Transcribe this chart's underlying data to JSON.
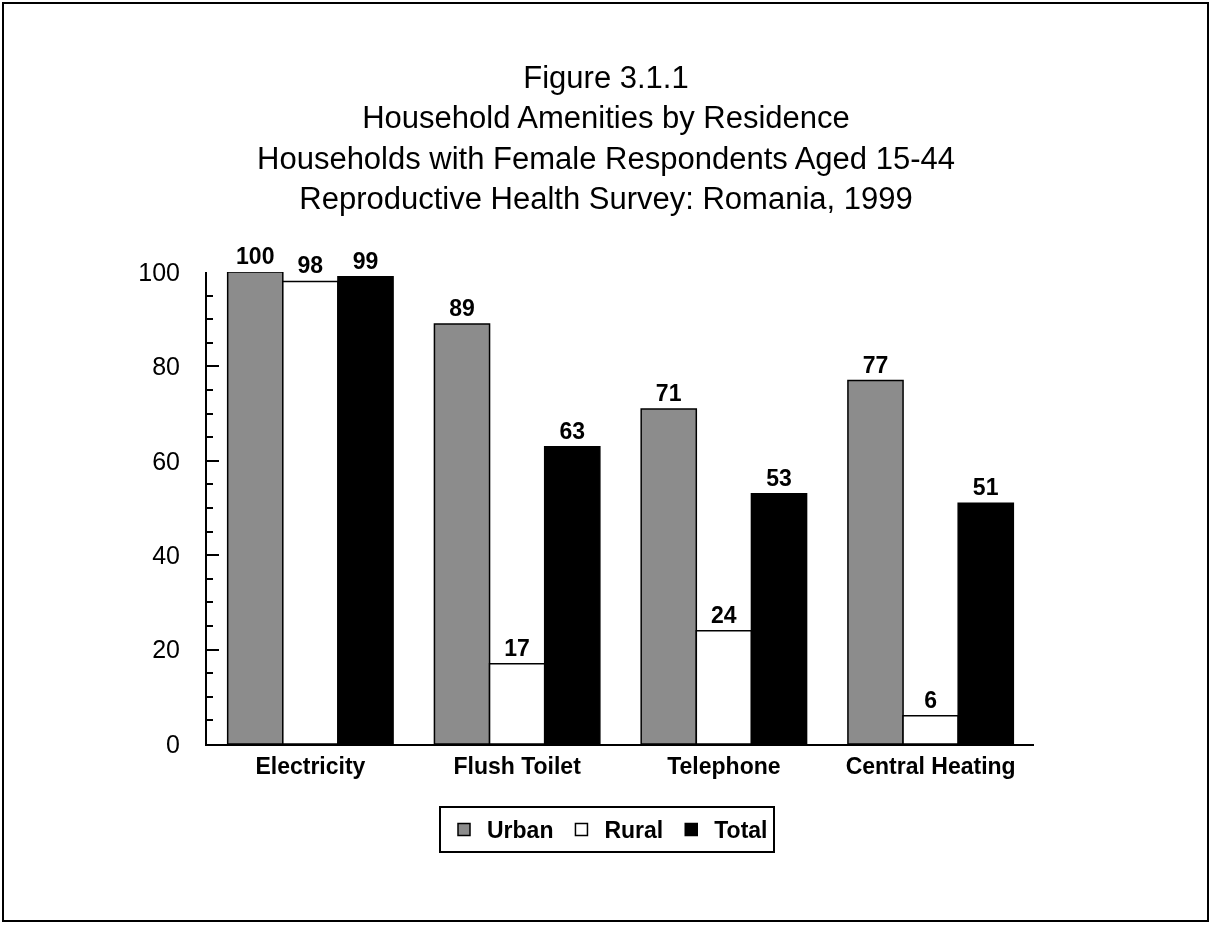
{
  "chart_data": {
    "type": "bar",
    "title": "Figure 3.1.1\nHousehold Amenities by Residence\nHouseholds with Female Respondents Aged 15-44\nReproductive Health Survey: Romania, 1999",
    "categories": [
      "Electricity",
      "Flush Toilet",
      "Telephone",
      "Central Heating"
    ],
    "series": [
      {
        "name": "Urban",
        "color": "#8c8c8c",
        "values": [
          100,
          89,
          71,
          77
        ]
      },
      {
        "name": "Rural",
        "color": "#ffffff",
        "values": [
          98,
          17,
          24,
          6
        ]
      },
      {
        "name": "Total",
        "color": "#000000",
        "values": [
          99,
          63,
          53,
          51
        ]
      }
    ],
    "ylim": [
      0,
      100
    ],
    "yticks": [
      0,
      {
        "value": 5,
        "label": null
      },
      {
        "value": 10,
        "label": null
      },
      {
        "value": 15,
        "label": null
      },
      20,
      {
        "value": 25,
        "label": null
      },
      {
        "value": 30,
        "label": null
      },
      {
        "value": 35,
        "label": null
      },
      40,
      {
        "value": 45,
        "label": null
      },
      {
        "value": 50,
        "label": null
      },
      {
        "value": 55,
        "label": null
      },
      60,
      {
        "value": 65,
        "label": null
      },
      {
        "value": 70,
        "label": null
      },
      {
        "value": 75,
        "label": null
      },
      80,
      {
        "value": 85,
        "label": null
      },
      {
        "value": 90,
        "label": null
      },
      {
        "value": 95,
        "label": null
      },
      100
    ],
    "grid": false,
    "legend": "bottom",
    "data_labels": true
  }
}
